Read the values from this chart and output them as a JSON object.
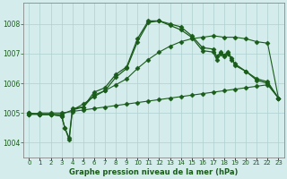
{
  "bg_color": "#d4ecec",
  "grid_color": "#b0d0d0",
  "line_color1": "#1a5c1a",
  "line_color2": "#1a5c1a",
  "line_color3": "#1a5c1a",
  "line_color4": "#1a5c1a",
  "xlabel": "Graphe pression niveau de la mer (hPa)",
  "ylim": [
    1003.5,
    1008.7
  ],
  "xlim": [
    -0.5,
    23.5
  ],
  "yticks": [
    1004,
    1005,
    1006,
    1007,
    1008
  ],
  "xtick_labels": [
    "0",
    "1",
    "2",
    "3",
    "4",
    "5",
    "6",
    "7",
    "8",
    "9",
    "10",
    "11",
    "12",
    "13",
    "14",
    "15",
    "16",
    "17",
    "18",
    "19",
    "20",
    "21",
    "22",
    "23"
  ],
  "series1_x": [
    0,
    1,
    2,
    3,
    4,
    5,
    6,
    7,
    8,
    9,
    10,
    11,
    12,
    13,
    14,
    15,
    16,
    17,
    18,
    19,
    20,
    21,
    22,
    23
  ],
  "series1_y": [
    1004.95,
    1005.0,
    1005.0,
    1005.0,
    1005.05,
    1005.1,
    1005.15,
    1005.2,
    1005.25,
    1005.3,
    1005.35,
    1005.4,
    1005.45,
    1005.5,
    1005.55,
    1005.6,
    1005.65,
    1005.7,
    1005.75,
    1005.8,
    1005.85,
    1005.9,
    1005.95,
    1005.5
  ],
  "series2_x": [
    0,
    1,
    2,
    3,
    4,
    5,
    6,
    7,
    8,
    9,
    10,
    11,
    12,
    13,
    14,
    15,
    16,
    17,
    18,
    19,
    20,
    21,
    22,
    23
  ],
  "series2_y": [
    1004.95,
    1004.95,
    1004.95,
    1004.95,
    1005.1,
    1005.3,
    1005.55,
    1005.75,
    1005.95,
    1006.15,
    1006.5,
    1006.8,
    1007.05,
    1007.25,
    1007.4,
    1007.5,
    1007.55,
    1007.6,
    1007.55,
    1007.55,
    1007.5,
    1007.4,
    1007.35,
    1005.5
  ],
  "series3_x": [
    0,
    1,
    2,
    3,
    3.3,
    3.7,
    4,
    5,
    6,
    7,
    8,
    9,
    10,
    11,
    12,
    13,
    14,
    15,
    16,
    17,
    17.3,
    17.7,
    18,
    18.3,
    18.7,
    19,
    20,
    21,
    22,
    23
  ],
  "series3_y": [
    1005.0,
    1004.95,
    1004.95,
    1004.9,
    1004.5,
    1004.15,
    1005.15,
    1005.2,
    1005.7,
    1005.85,
    1006.3,
    1006.55,
    1007.5,
    1008.1,
    1008.1,
    1008.0,
    1007.9,
    1007.6,
    1007.2,
    1007.15,
    1006.9,
    1007.05,
    1006.95,
    1007.05,
    1006.85,
    1006.6,
    1006.4,
    1006.15,
    1006.05,
    1005.5
  ],
  "series4_x": [
    0,
    1,
    2,
    3,
    3.3,
    3.7,
    4,
    5,
    6,
    7,
    8,
    9,
    10,
    11,
    12,
    13,
    14,
    15,
    16,
    17,
    17.3,
    17.7,
    18,
    18.3,
    18.7,
    19,
    20,
    21,
    22,
    23
  ],
  "series4_y": [
    1005.0,
    1004.95,
    1004.95,
    1004.9,
    1004.5,
    1004.1,
    1005.1,
    1005.2,
    1005.6,
    1005.75,
    1006.2,
    1006.5,
    1007.4,
    1008.05,
    1008.1,
    1007.95,
    1007.8,
    1007.55,
    1007.1,
    1007.05,
    1006.8,
    1007.0,
    1006.9,
    1007.0,
    1006.8,
    1006.65,
    1006.4,
    1006.1,
    1006.0,
    1005.5
  ]
}
